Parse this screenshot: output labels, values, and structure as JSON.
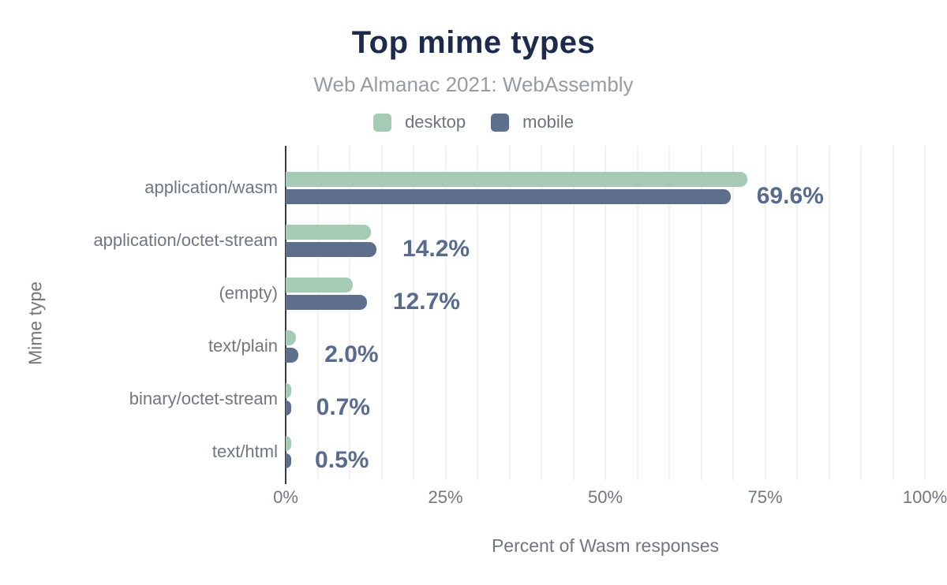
{
  "header": {
    "title": "Top mime types",
    "subtitle": "Web Almanac 2021: WebAssembly"
  },
  "legend": {
    "items": [
      {
        "name": "desktop",
        "label": "desktop",
        "color": "#a5cab6"
      },
      {
        "name": "mobile",
        "label": "mobile",
        "color": "#5e6f8c"
      }
    ]
  },
  "colors": {
    "title": "#1e2a4c",
    "subtitle": "#9a9ba1",
    "axis_text": "#71767f",
    "legend_text": "#6d727c",
    "value_label": "#586b8d",
    "axis_line": "#343b48",
    "gridline": "#f1f1f4",
    "desktop_bar": "#a5cab6",
    "mobile_bar": "#5e6f8c",
    "background": "#ffffff"
  },
  "chart_data": {
    "type": "bar",
    "orientation": "horizontal",
    "title": "Top mime types",
    "subtitle": "Web Almanac 2021: WebAssembly",
    "xlabel": "Percent of Wasm responses",
    "ylabel": "Mime type",
    "xlim": [
      0,
      100
    ],
    "x_ticks": [
      {
        "label": "0%",
        "value": 0
      },
      {
        "label": "25%",
        "value": 25
      },
      {
        "label": "50%",
        "value": 50
      },
      {
        "label": "75%",
        "value": 75
      },
      {
        "label": "100%",
        "value": 100
      }
    ],
    "grid": "vertical, minor lines every 5%",
    "legend_position": "top",
    "categories": [
      "application/wasm",
      "application/octet-stream",
      "(empty)",
      "text/plain",
      "binary/octet-stream",
      "text/html"
    ],
    "series": [
      {
        "name": "desktop",
        "color": "#a5cab6",
        "values": [
          72.2,
          13.3,
          10.5,
          1.6,
          0.8,
          0.6
        ]
      },
      {
        "name": "mobile",
        "color": "#5e6f8c",
        "values": [
          69.6,
          14.2,
          12.7,
          2.0,
          0.7,
          0.5
        ]
      }
    ],
    "value_labels": {
      "series": "mobile",
      "texts": [
        "69.6%",
        "14.2%",
        "12.7%",
        "2.0%",
        "0.7%",
        "0.5%"
      ]
    }
  }
}
